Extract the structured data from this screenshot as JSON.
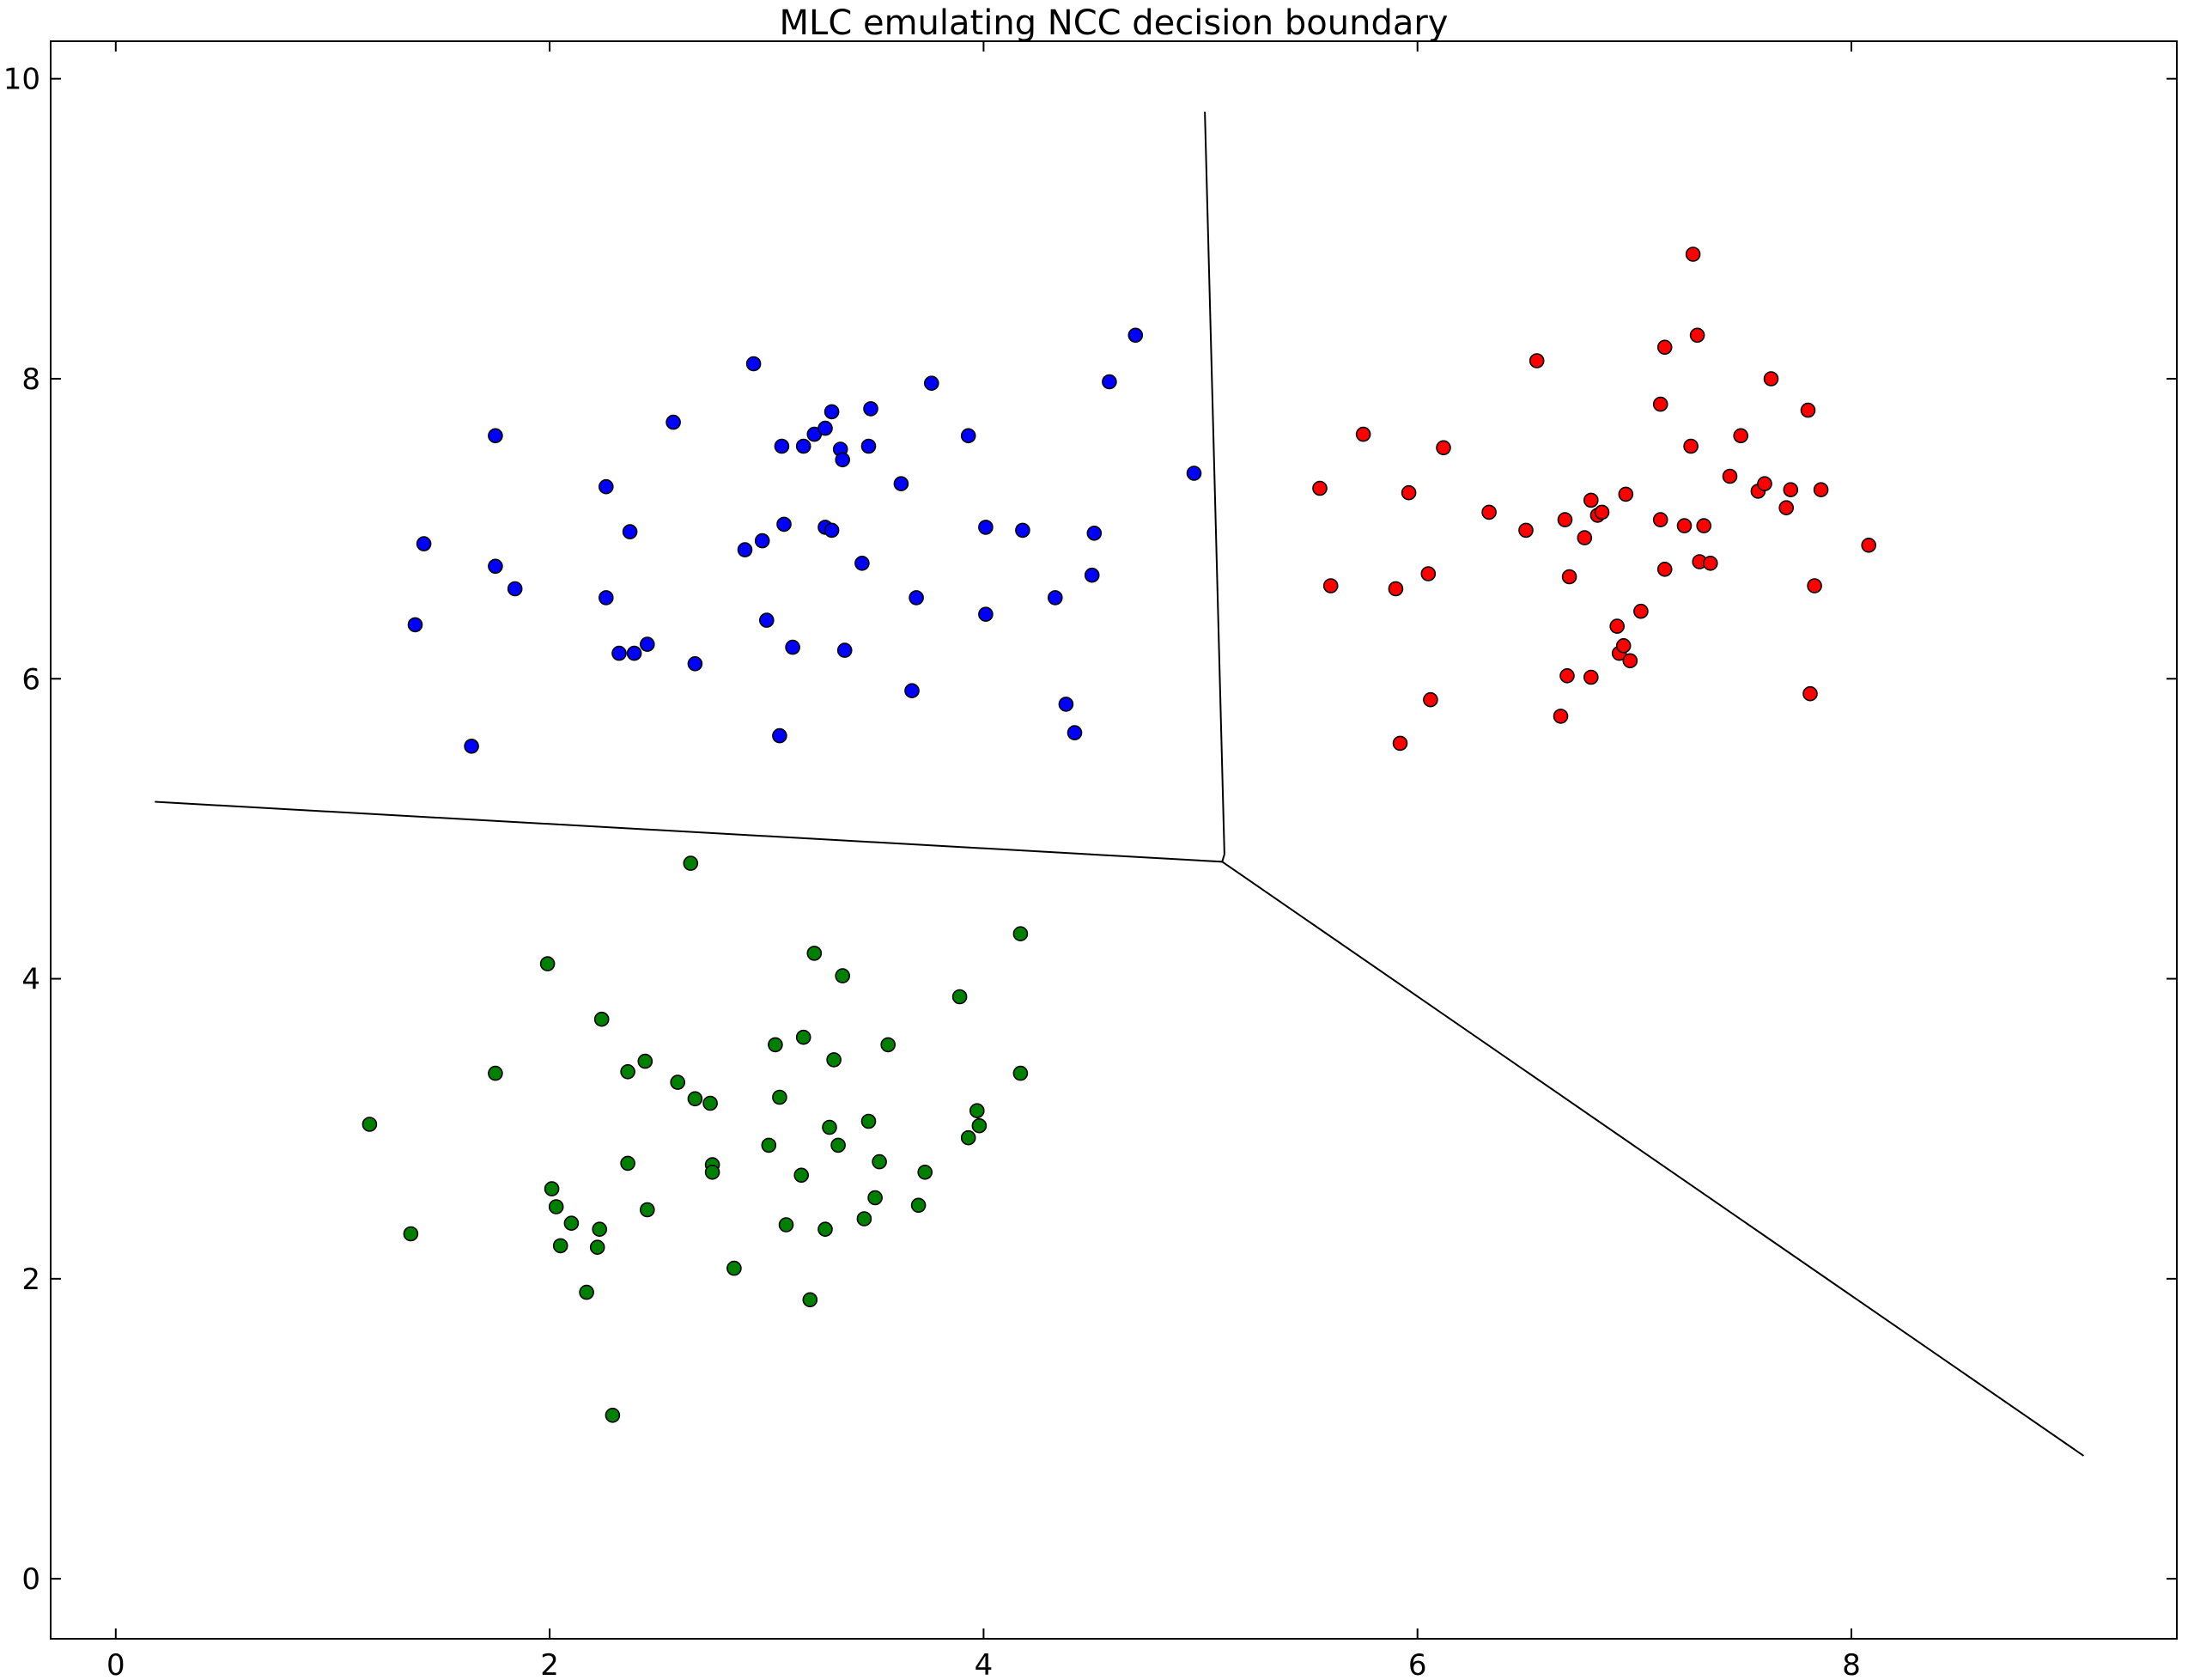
{
  "chart_data": {
    "type": "scatter",
    "title": "MLC emulating NCC decision boundary",
    "xlabel": "",
    "ylabel": "",
    "xlim": [
      -0.3,
      9.5
    ],
    "ylim": [
      -0.4,
      10.25
    ],
    "xticks": [
      0,
      2,
      4,
      6,
      8
    ],
    "yticks": [
      0,
      2,
      4,
      6,
      8,
      10
    ],
    "grid": false,
    "colors": {
      "blue": "#0000ff",
      "red": "#ff0000",
      "green": "#008000",
      "boundary": "#000000"
    },
    "series": [
      {
        "name": "blue class",
        "color": "#0000ff",
        "points": [
          [
            1.42,
            6.9
          ],
          [
            1.38,
            6.36
          ],
          [
            1.75,
            7.62
          ],
          [
            1.75,
            6.75
          ],
          [
            1.84,
            6.6
          ],
          [
            1.64,
            5.55
          ],
          [
            2.26,
            7.28
          ],
          [
            2.26,
            6.54
          ],
          [
            2.37,
            6.98
          ],
          [
            2.32,
            6.17
          ],
          [
            2.39,
            6.17
          ],
          [
            2.45,
            6.23
          ],
          [
            2.57,
            7.71
          ],
          [
            2.67,
            6.1
          ],
          [
            2.9,
            6.86
          ],
          [
            2.94,
            8.1
          ],
          [
            2.98,
            6.92
          ],
          [
            3.0,
            6.39
          ],
          [
            3.06,
            5.62
          ],
          [
            3.07,
            7.55
          ],
          [
            3.08,
            7.03
          ],
          [
            3.12,
            6.21
          ],
          [
            3.17,
            7.55
          ],
          [
            3.22,
            7.63
          ],
          [
            3.27,
            7.67
          ],
          [
            3.27,
            7.01
          ],
          [
            3.3,
            7.78
          ],
          [
            3.3,
            6.99
          ],
          [
            3.34,
            7.53
          ],
          [
            3.35,
            7.46
          ],
          [
            3.36,
            6.19
          ],
          [
            3.44,
            6.77
          ],
          [
            3.47,
            7.55
          ],
          [
            3.48,
            7.8
          ],
          [
            3.62,
            7.3
          ],
          [
            3.67,
            5.92
          ],
          [
            3.69,
            6.54
          ],
          [
            3.76,
            7.97
          ],
          [
            3.93,
            7.62
          ],
          [
            4.01,
            7.01
          ],
          [
            4.01,
            6.43
          ],
          [
            4.18,
            6.99
          ],
          [
            4.33,
            6.54
          ],
          [
            4.38,
            5.83
          ],
          [
            4.42,
            5.64
          ],
          [
            4.5,
            6.69
          ],
          [
            4.51,
            6.97
          ],
          [
            4.58,
            7.98
          ],
          [
            4.7,
            8.29
          ],
          [
            4.97,
            7.37
          ]
        ]
      },
      {
        "name": "red class",
        "color": "#ff0000",
        "points": [
          [
            5.55,
            7.27
          ],
          [
            5.6,
            6.62
          ],
          [
            5.75,
            7.63
          ],
          [
            5.9,
            6.6
          ],
          [
            5.92,
            5.57
          ],
          [
            5.96,
            7.24
          ],
          [
            6.05,
            6.7
          ],
          [
            6.06,
            5.86
          ],
          [
            6.12,
            7.54
          ],
          [
            6.33,
            7.11
          ],
          [
            6.5,
            6.99
          ],
          [
            6.55,
            8.12
          ],
          [
            6.66,
            5.75
          ],
          [
            6.68,
            7.06
          ],
          [
            6.69,
            6.02
          ],
          [
            6.7,
            6.68
          ],
          [
            6.77,
            6.94
          ],
          [
            6.8,
            7.19
          ],
          [
            6.8,
            6.01
          ],
          [
            6.83,
            7.09
          ],
          [
            6.85,
            7.11
          ],
          [
            6.92,
            6.35
          ],
          [
            6.93,
            6.17
          ],
          [
            6.95,
            6.22
          ],
          [
            6.96,
            7.23
          ],
          [
            6.98,
            6.12
          ],
          [
            7.03,
            6.45
          ],
          [
            7.12,
            7.83
          ],
          [
            7.12,
            7.06
          ],
          [
            7.14,
            8.21
          ],
          [
            7.14,
            6.73
          ],
          [
            7.23,
            7.02
          ],
          [
            7.26,
            7.55
          ],
          [
            7.27,
            8.83
          ],
          [
            7.29,
            8.29
          ],
          [
            7.3,
            6.78
          ],
          [
            7.32,
            7.02
          ],
          [
            7.35,
            6.77
          ],
          [
            7.44,
            7.35
          ],
          [
            7.49,
            7.62
          ],
          [
            7.57,
            7.25
          ],
          [
            7.6,
            7.3
          ],
          [
            7.63,
            8.0
          ],
          [
            7.7,
            7.14
          ],
          [
            7.72,
            7.26
          ],
          [
            7.8,
            7.79
          ],
          [
            7.81,
            5.9
          ],
          [
            7.83,
            6.62
          ],
          [
            7.86,
            7.26
          ],
          [
            8.08,
            6.89
          ]
        ]
      },
      {
        "name": "green class",
        "color": "#008000",
        "points": [
          [
            1.17,
            3.03
          ],
          [
            1.36,
            2.3
          ],
          [
            1.75,
            3.37
          ],
          [
            1.99,
            4.1
          ],
          [
            2.01,
            2.6
          ],
          [
            2.03,
            2.48
          ],
          [
            2.05,
            2.22
          ],
          [
            2.1,
            2.37
          ],
          [
            2.17,
            1.91
          ],
          [
            2.22,
            2.21
          ],
          [
            2.23,
            2.33
          ],
          [
            2.24,
            3.73
          ],
          [
            2.29,
            1.09
          ],
          [
            2.36,
            2.77
          ],
          [
            2.36,
            3.38
          ],
          [
            2.44,
            3.45
          ],
          [
            2.45,
            2.46
          ],
          [
            2.59,
            3.31
          ],
          [
            2.65,
            4.77
          ],
          [
            2.67,
            3.2
          ],
          [
            2.74,
            3.17
          ],
          [
            2.75,
            2.76
          ],
          [
            2.75,
            2.71
          ],
          [
            2.85,
            2.07
          ],
          [
            3.01,
            2.89
          ],
          [
            3.04,
            3.56
          ],
          [
            3.06,
            3.21
          ],
          [
            3.09,
            2.36
          ],
          [
            3.16,
            2.69
          ],
          [
            3.17,
            3.61
          ],
          [
            3.2,
            1.86
          ],
          [
            3.22,
            4.17
          ],
          [
            3.27,
            2.33
          ],
          [
            3.29,
            3.01
          ],
          [
            3.31,
            3.46
          ],
          [
            3.33,
            2.89
          ],
          [
            3.35,
            4.02
          ],
          [
            3.45,
            2.4
          ],
          [
            3.47,
            3.05
          ],
          [
            3.5,
            2.54
          ],
          [
            3.52,
            2.78
          ],
          [
            3.56,
            3.56
          ],
          [
            3.7,
            2.49
          ],
          [
            3.73,
            2.71
          ],
          [
            3.89,
            3.88
          ],
          [
            3.93,
            2.94
          ],
          [
            3.97,
            3.12
          ],
          [
            3.98,
            3.02
          ],
          [
            4.17,
            4.3
          ],
          [
            4.17,
            3.37
          ]
        ]
      }
    ],
    "decision_boundary": [
      {
        "name": "blue-red boundary",
        "points": [
          [
            5.02,
            9.78
          ],
          [
            5.11,
            4.83
          ]
        ]
      },
      {
        "name": "blue-green boundary",
        "points": [
          [
            0.18,
            5.18
          ],
          [
            5.1,
            4.78
          ],
          [
            5.11,
            4.83
          ]
        ]
      },
      {
        "name": "green-red boundary",
        "points": [
          [
            5.1,
            4.78
          ],
          [
            9.07,
            0.82
          ]
        ]
      }
    ]
  }
}
